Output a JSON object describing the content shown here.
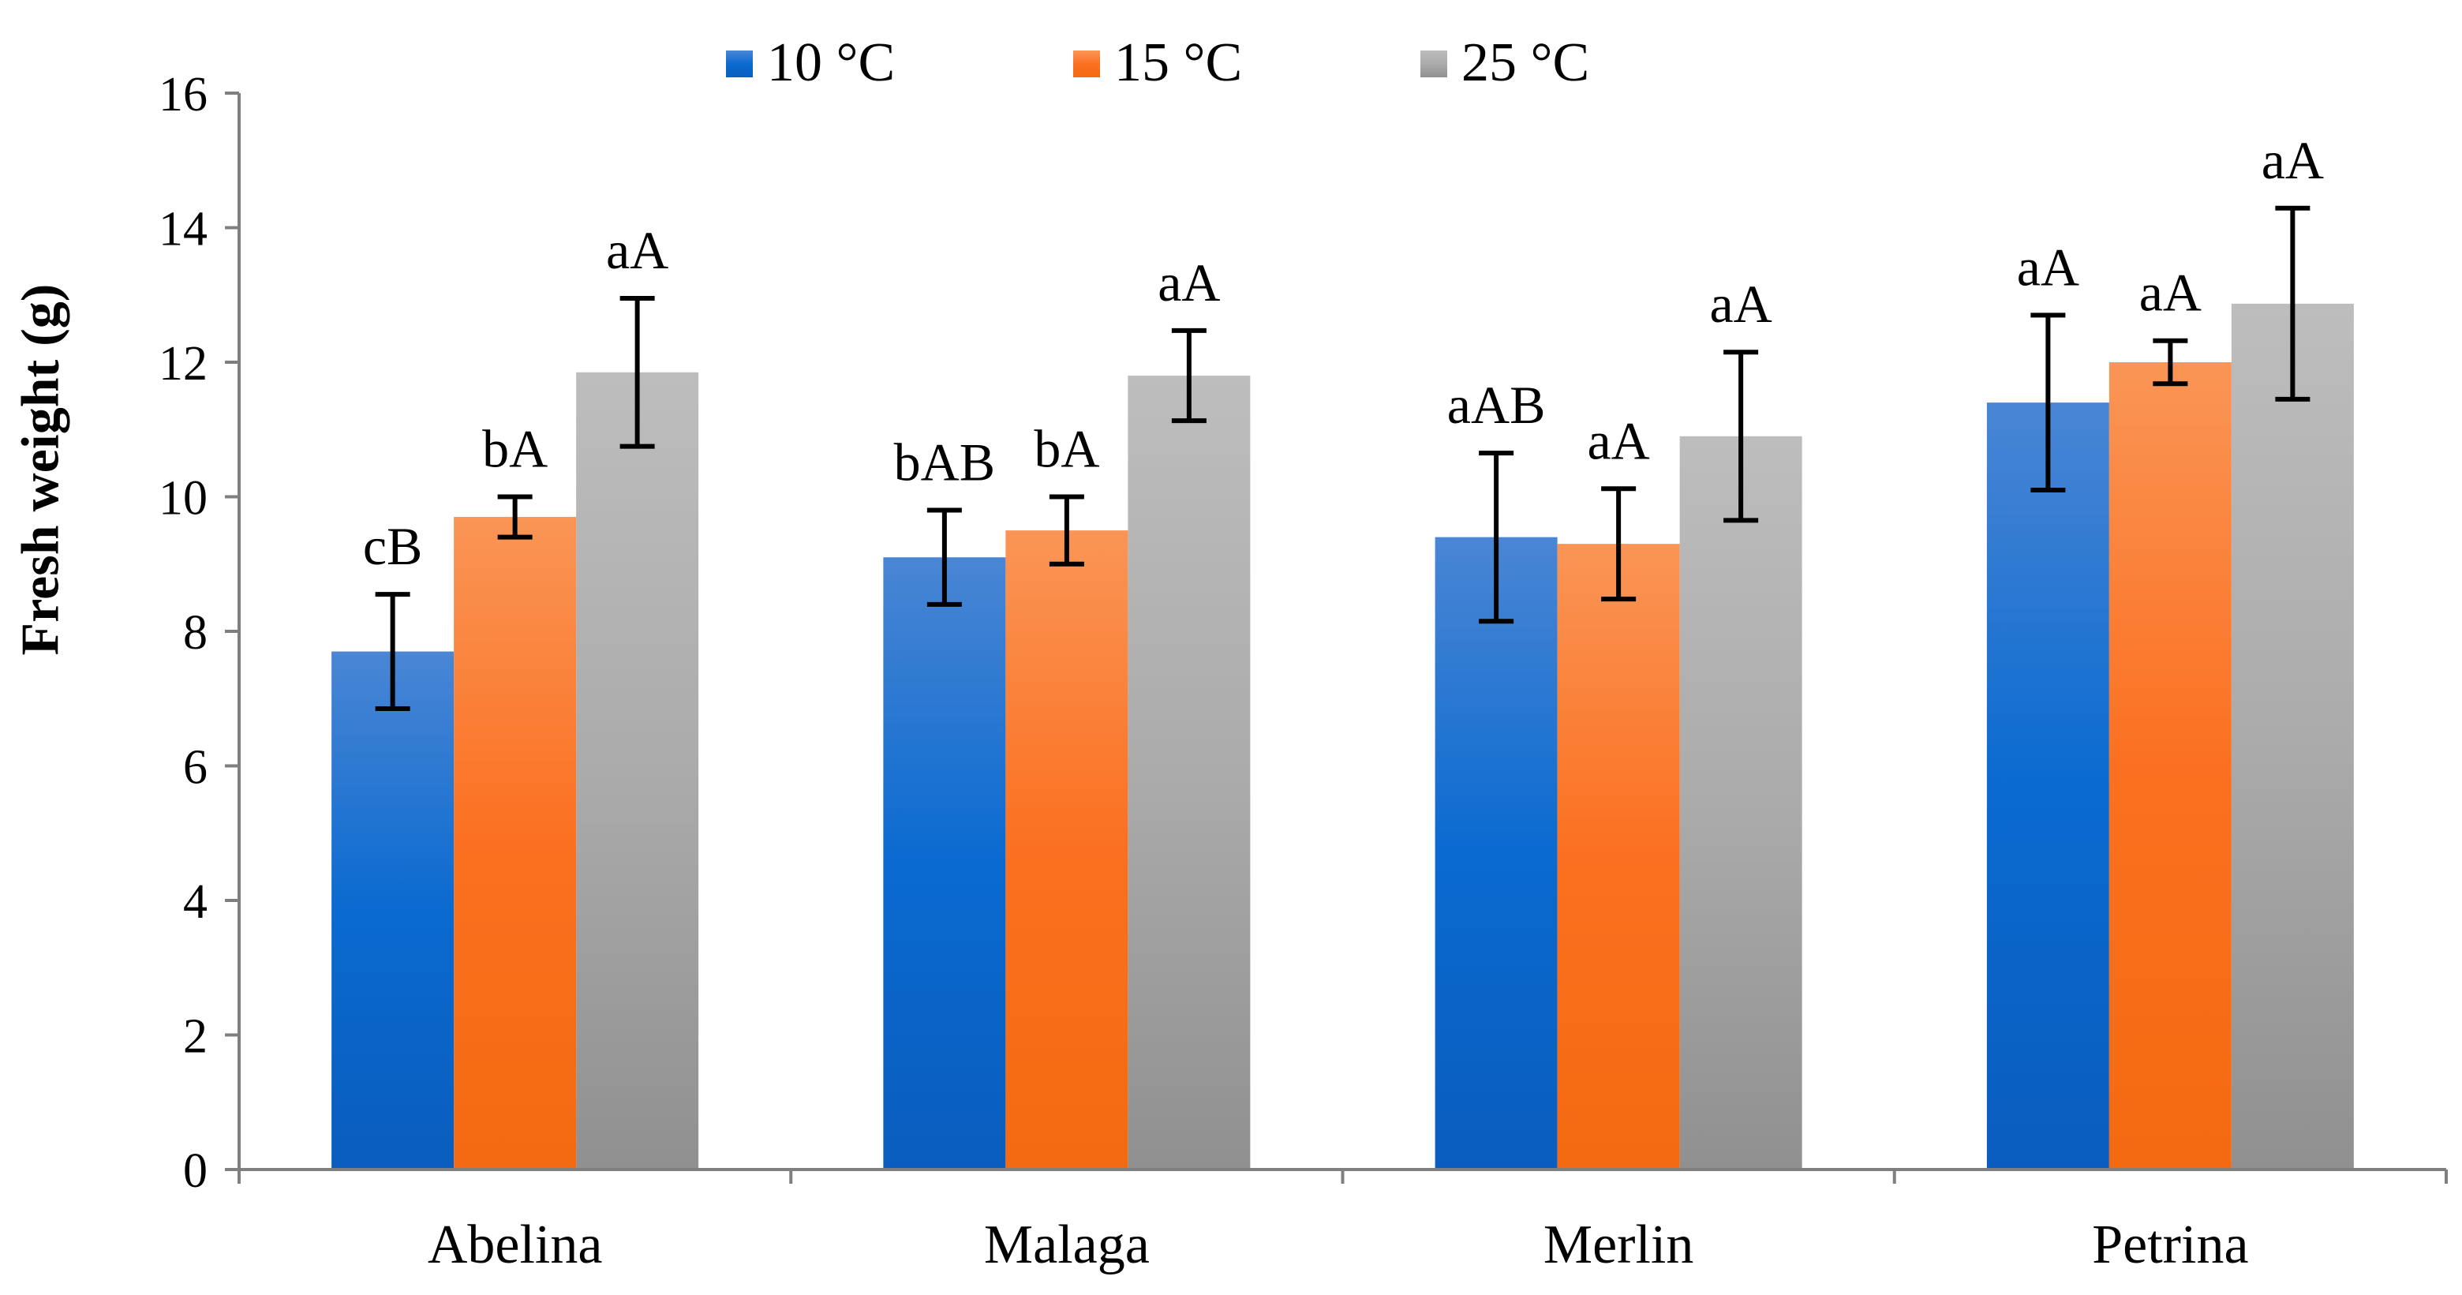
{
  "chart_data": {
    "type": "bar",
    "title": "",
    "xlabel": "",
    "ylabel": "Fresh weight (g)",
    "ylim": [
      0,
      16
    ],
    "yticks": [
      0,
      2,
      4,
      6,
      8,
      10,
      12,
      14,
      16
    ],
    "grid": false,
    "legend_position": "top-center",
    "categories": [
      "Abelina",
      "Malaga",
      "Merlin",
      "Petrina"
    ],
    "series": [
      {
        "name": "10 °C",
        "color": "#1565C0",
        "values": [
          7.7,
          9.1,
          9.4,
          11.4
        ],
        "errors": [
          0.85,
          0.7,
          1.25,
          1.3
        ],
        "labels": [
          "cB",
          "bAB",
          "aAB",
          "aA"
        ]
      },
      {
        "name": "15 °C",
        "color": "#F26B1D",
        "values": [
          9.7,
          9.5,
          9.3,
          12.0
        ],
        "errors": [
          0.3,
          0.5,
          0.82,
          0.32
        ],
        "labels": [
          "bA",
          "bA",
          "aA",
          "aA"
        ]
      },
      {
        "name": "25 °C",
        "color": "#A6A6A6",
        "values": [
          11.85,
          11.8,
          10.9,
          12.87
        ],
        "errors": [
          1.1,
          0.67,
          1.25,
          1.42
        ],
        "labels": [
          "aA",
          "aA",
          "aA",
          "aA"
        ]
      }
    ]
  }
}
